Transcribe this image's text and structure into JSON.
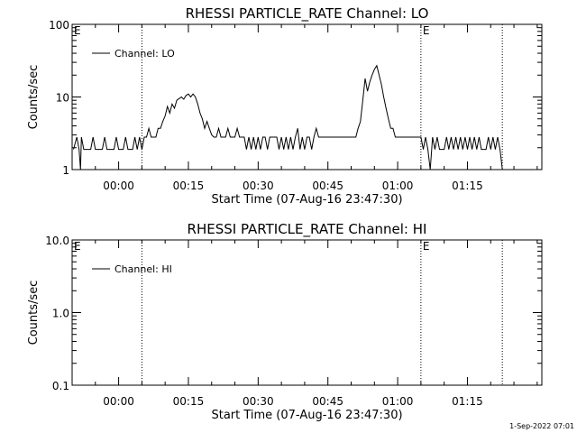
{
  "footer_text": "1-Sep-2022 07:01",
  "chart_data": [
    {
      "type": "line",
      "title": "RHESSI PARTICLE_RATE Channel: LO",
      "xlabel": "Start Time (07-Aug-16 23:47:30)",
      "ylabel": "Counts/sec",
      "y_scale": "log",
      "ylim": [
        1,
        100
      ],
      "y_ticks": [
        1,
        10,
        100
      ],
      "y_tick_labels": [
        "1",
        "10",
        "100"
      ],
      "xlim_minutes": [
        -10,
        91
      ],
      "x_ticks_minutes": [
        0,
        15,
        30,
        45,
        60,
        75
      ],
      "x_tick_labels": [
        "00:00",
        "00:15",
        "00:30",
        "00:45",
        "01:00",
        "01:15"
      ],
      "markers_minutes": [
        5,
        65,
        82.5
      ],
      "marker_labels": [
        {
          "x_minutes": -10,
          "text": "E"
        },
        {
          "x_minutes": 65,
          "text": "E"
        }
      ],
      "legend": {
        "label": "Channel: LO",
        "position": "top-left"
      },
      "series": [
        {
          "name": "Channel: LO",
          "points": [
            [
              -9.7,
              1.9
            ],
            [
              -9,
              2.8
            ],
            [
              -8.5,
              1.9
            ],
            [
              -8.2,
              1.0
            ],
            [
              -8,
              2.8
            ],
            [
              -7.5,
              1.9
            ],
            [
              -6,
              1.9
            ],
            [
              -5.5,
              2.8
            ],
            [
              -5,
              1.9
            ],
            [
              -3.5,
              1.9
            ],
            [
              -3,
              2.8
            ],
            [
              -2.5,
              1.9
            ],
            [
              -1,
              1.9
            ],
            [
              -0.5,
              2.8
            ],
            [
              0,
              1.9
            ],
            [
              1,
              1.9
            ],
            [
              1.5,
              2.8
            ],
            [
              2,
              1.9
            ],
            [
              3,
              1.9
            ],
            [
              3.5,
              2.8
            ],
            [
              4,
              1.9
            ],
            [
              4.5,
              2.8
            ],
            [
              5,
              1.9
            ],
            [
              5.5,
              2.8
            ],
            [
              6,
              2.8
            ],
            [
              6.5,
              3.7
            ],
            [
              7,
              2.8
            ],
            [
              8,
              2.8
            ],
            [
              8.5,
              3.7
            ],
            [
              9,
              3.7
            ],
            [
              9.5,
              4.6
            ],
            [
              10,
              5.5
            ],
            [
              10.5,
              7.4
            ],
            [
              11,
              6.0
            ],
            [
              11.5,
              8.0
            ],
            [
              12,
              7.0
            ],
            [
              12.5,
              9.0
            ],
            [
              13,
              9.5
            ],
            [
              13.5,
              10
            ],
            [
              14,
              9.3
            ],
            [
              14.5,
              10.5
            ],
            [
              15,
              11.0
            ],
            [
              15.5,
              10
            ],
            [
              16,
              11.0
            ],
            [
              16.5,
              10
            ],
            [
              17,
              8.0
            ],
            [
              17.5,
              6.0
            ],
            [
              18,
              5.0
            ],
            [
              18.5,
              3.7
            ],
            [
              19,
              4.6
            ],
            [
              19.5,
              3.7
            ],
            [
              20,
              3.0
            ],
            [
              20.5,
              2.8
            ],
            [
              21,
              2.8
            ],
            [
              21.5,
              3.7
            ],
            [
              22,
              2.8
            ],
            [
              23,
              2.8
            ],
            [
              23.5,
              3.7
            ],
            [
              24,
              2.8
            ],
            [
              25,
              2.8
            ],
            [
              25.5,
              3.7
            ],
            [
              26,
              2.8
            ],
            [
              27,
              2.8
            ],
            [
              27.5,
              1.9
            ],
            [
              28,
              2.8
            ],
            [
              28.5,
              1.9
            ],
            [
              29,
              2.8
            ],
            [
              29.5,
              1.9
            ],
            [
              30,
              2.8
            ],
            [
              30.5,
              1.9
            ],
            [
              31,
              2.8
            ],
            [
              31.5,
              2.8
            ],
            [
              32,
              1.9
            ],
            [
              32.5,
              2.8
            ],
            [
              34,
              2.8
            ],
            [
              34.5,
              1.9
            ],
            [
              35,
              2.8
            ],
            [
              35.5,
              1.9
            ],
            [
              36,
              2.8
            ],
            [
              36.5,
              1.9
            ],
            [
              37,
              2.8
            ],
            [
              37.5,
              1.9
            ],
            [
              38,
              2.8
            ],
            [
              38.5,
              3.7
            ],
            [
              39,
              1.9
            ],
            [
              39.5,
              2.8
            ],
            [
              40,
              1.9
            ],
            [
              40.5,
              2.8
            ],
            [
              41,
              2.8
            ],
            [
              41.5,
              1.9
            ],
            [
              42,
              2.8
            ],
            [
              42.5,
              3.7
            ],
            [
              43,
              2.8
            ],
            [
              45,
              2.8
            ],
            [
              47,
              2.8
            ],
            [
              49,
              2.8
            ],
            [
              51,
              2.8
            ],
            [
              51.5,
              3.7
            ],
            [
              52,
              4.6
            ],
            [
              52.5,
              9.0
            ],
            [
              53,
              18
            ],
            [
              53.5,
              12
            ],
            [
              54,
              16
            ],
            [
              54.5,
              20
            ],
            [
              55,
              24
            ],
            [
              55.5,
              27
            ],
            [
              56,
              20
            ],
            [
              56.5,
              15
            ],
            [
              57,
              10
            ],
            [
              57.5,
              7
            ],
            [
              58,
              5
            ],
            [
              58.5,
              3.7
            ],
            [
              59,
              3.7
            ],
            [
              59.5,
              2.8
            ],
            [
              60,
              2.8
            ],
            [
              61,
              2.8
            ],
            [
              62,
              2.8
            ],
            [
              63,
              2.8
            ],
            [
              64,
              2.8
            ],
            [
              65,
              2.8
            ],
            [
              65.5,
              1.9
            ],
            [
              66,
              2.8
            ],
            [
              66.5,
              1.9
            ],
            [
              67,
              1.0
            ],
            [
              67.5,
              2.8
            ],
            [
              68,
              1.9
            ],
            [
              68.5,
              2.8
            ],
            [
              69,
              1.9
            ],
            [
              70,
              1.9
            ],
            [
              70.5,
              2.8
            ],
            [
              71,
              1.9
            ],
            [
              71.5,
              2.8
            ],
            [
              72,
              1.9
            ],
            [
              72.5,
              2.8
            ],
            [
              73,
              1.9
            ],
            [
              73.5,
              2.8
            ],
            [
              74,
              1.9
            ],
            [
              74.5,
              2.8
            ],
            [
              75,
              1.9
            ],
            [
              75.5,
              2.8
            ],
            [
              76,
              1.9
            ],
            [
              76.5,
              2.8
            ],
            [
              77,
              1.9
            ],
            [
              77.5,
              2.8
            ],
            [
              78,
              1.9
            ],
            [
              79,
              1.9
            ],
            [
              79.5,
              2.8
            ],
            [
              80,
              1.9
            ],
            [
              80.5,
              2.8
            ],
            [
              81,
              1.9
            ],
            [
              81.5,
              2.8
            ],
            [
              82,
              1.9
            ],
            [
              82.5,
              1.0
            ]
          ]
        }
      ]
    },
    {
      "type": "line",
      "title": "RHESSI PARTICLE_RATE Channel: HI",
      "xlabel": "Start Time (07-Aug-16 23:47:30)",
      "ylabel": "Counts/sec",
      "y_scale": "log",
      "ylim": [
        0.1,
        10
      ],
      "y_ticks": [
        0.1,
        1,
        10
      ],
      "y_tick_labels": [
        "0.1",
        "1.0",
        "10.0"
      ],
      "xlim_minutes": [
        -10,
        91
      ],
      "x_ticks_minutes": [
        0,
        15,
        30,
        45,
        60,
        75
      ],
      "x_tick_labels": [
        "00:00",
        "00:15",
        "00:30",
        "00:45",
        "01:00",
        "01:15"
      ],
      "markers_minutes": [
        5,
        65,
        82.5
      ],
      "marker_labels": [
        {
          "x_minutes": -10,
          "text": "E"
        },
        {
          "x_minutes": 65,
          "text": "E"
        }
      ],
      "legend": {
        "label": "Channel: HI",
        "position": "top-left"
      },
      "series": [
        {
          "name": "Channel: HI",
          "points": []
        }
      ]
    }
  ]
}
